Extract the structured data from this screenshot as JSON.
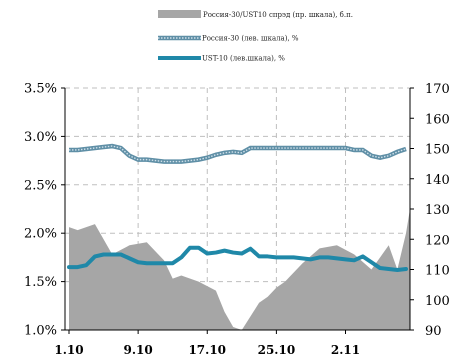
{
  "colors": {
    "spread_fill": "#a6a6a6",
    "russia30_line": "#5f8fa6",
    "ust10_line": "#1f88a8",
    "grid": "#bfbfbf",
    "axis": "#000000"
  },
  "chart_data": {
    "type": "line",
    "legend_position": "top-center",
    "grid": true,
    "x": {
      "tick_labels": [
        "1.10",
        "9.10",
        "17.10",
        "25.10",
        "2.11"
      ],
      "tick_index": [
        0,
        8,
        16,
        24,
        32
      ],
      "n_points": 40
    },
    "y_left": {
      "range": [
        1.0,
        3.5
      ],
      "tick_labels": [
        "1.0%",
        "1.5%",
        "2.0%",
        "2.5%",
        "3.0%",
        "3.5%"
      ],
      "tick_values": [
        1.0,
        1.5,
        2.0,
        2.5,
        3.0,
        3.5
      ]
    },
    "y_right": {
      "range": [
        90,
        170
      ],
      "tick_labels": [
        "90",
        "100",
        "110",
        "120",
        "130",
        "140",
        "150",
        "160",
        "170"
      ],
      "tick_values": [
        90,
        100,
        110,
        120,
        130,
        140,
        150,
        160,
        170
      ]
    },
    "series": [
      {
        "name": "Россия-30/UST10 спрэд (пр. шкала), б.п.",
        "type": "area",
        "axis": "right",
        "x": [
          0,
          1,
          3,
          5,
          7,
          9,
          11,
          12,
          13,
          15,
          17,
          18,
          19,
          20,
          22,
          23,
          24,
          25,
          27,
          29,
          31,
          33,
          35,
          37,
          38,
          39,
          40
        ],
        "values": [
          124,
          123,
          125,
          115,
          118,
          119,
          113,
          107,
          108,
          106,
          103,
          96,
          91,
          90,
          99,
          101,
          104,
          106,
          112,
          117,
          118,
          115,
          110,
          118,
          110,
          122,
          130
        ]
      },
      {
        "name": "Россия-30 (лев. шкала), %",
        "type": "line",
        "axis": "left",
        "x": [
          0,
          1,
          2,
          3,
          4,
          5,
          6,
          7,
          8,
          9,
          10,
          11,
          12,
          13,
          14,
          15,
          16,
          17,
          18,
          19,
          20,
          21,
          22,
          23,
          24,
          25,
          26,
          27,
          28,
          29,
          30,
          31,
          32,
          33,
          34,
          35,
          36,
          37,
          38,
          39
        ],
        "values": [
          2.86,
          2.86,
          2.87,
          2.88,
          2.89,
          2.9,
          2.88,
          2.8,
          2.76,
          2.76,
          2.75,
          2.74,
          2.74,
          2.74,
          2.75,
          2.76,
          2.78,
          2.81,
          2.83,
          2.84,
          2.83,
          2.88,
          2.88,
          2.88,
          2.88,
          2.88,
          2.88,
          2.88,
          2.88,
          2.88,
          2.88,
          2.88,
          2.88,
          2.86,
          2.86,
          2.8,
          2.78,
          2.8,
          2.84,
          2.87
        ]
      },
      {
        "name": "UST-10 (лев.шкала), %",
        "type": "line",
        "axis": "left",
        "x": [
          0,
          1,
          2,
          3,
          4,
          5,
          6,
          7,
          8,
          9,
          10,
          11,
          12,
          13,
          14,
          15,
          16,
          17,
          18,
          19,
          20,
          21,
          22,
          23,
          24,
          25,
          26,
          27,
          28,
          29,
          30,
          31,
          32,
          33,
          34,
          35,
          36,
          37,
          38,
          39
        ],
        "values": [
          1.65,
          1.65,
          1.67,
          1.76,
          1.78,
          1.78,
          1.78,
          1.74,
          1.7,
          1.69,
          1.69,
          1.69,
          1.69,
          1.75,
          1.85,
          1.85,
          1.79,
          1.8,
          1.82,
          1.8,
          1.79,
          1.84,
          1.76,
          1.76,
          1.75,
          1.75,
          1.75,
          1.74,
          1.73,
          1.75,
          1.75,
          1.74,
          1.73,
          1.72,
          1.76,
          1.7,
          1.64,
          1.63,
          1.62,
          1.63
        ]
      }
    ]
  }
}
